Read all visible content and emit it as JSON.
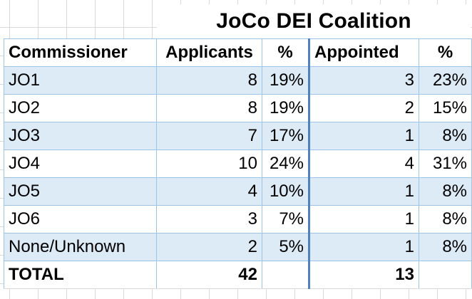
{
  "title": "JoCo DEI Coalition",
  "headers": {
    "commissioner": "Commissioner",
    "applicants": "Applicants",
    "applicants_pct": "%",
    "appointed": "Appointed",
    "appointed_pct": "%"
  },
  "rows": [
    {
      "name": "JO1",
      "applicants": "8",
      "applicants_pct": "19%",
      "appointed": "3",
      "appointed_pct": "23%"
    },
    {
      "name": "JO2",
      "applicants": "8",
      "applicants_pct": "19%",
      "appointed": "2",
      "appointed_pct": "15%"
    },
    {
      "name": "JO3",
      "applicants": "7",
      "applicants_pct": "17%",
      "appointed": "1",
      "appointed_pct": "8%"
    },
    {
      "name": "JO4",
      "applicants": "10",
      "applicants_pct": "24%",
      "appointed": "4",
      "appointed_pct": "31%"
    },
    {
      "name": "JO5",
      "applicants": "4",
      "applicants_pct": "10%",
      "appointed": "1",
      "appointed_pct": "8%"
    },
    {
      "name": "JO6",
      "applicants": "3",
      "applicants_pct": "7%",
      "appointed": "1",
      "appointed_pct": "8%"
    },
    {
      "name": "None/Unknown",
      "applicants": "2",
      "applicants_pct": "5%",
      "appointed": "1",
      "appointed_pct": "8%"
    }
  ],
  "total": {
    "label": "TOTAL",
    "applicants": "42",
    "appointed": "13"
  },
  "colors": {
    "band": "#ddebf7",
    "border": "#9dc3e6",
    "separator": "#4f81bd",
    "gridline": "#d9d9d9"
  }
}
